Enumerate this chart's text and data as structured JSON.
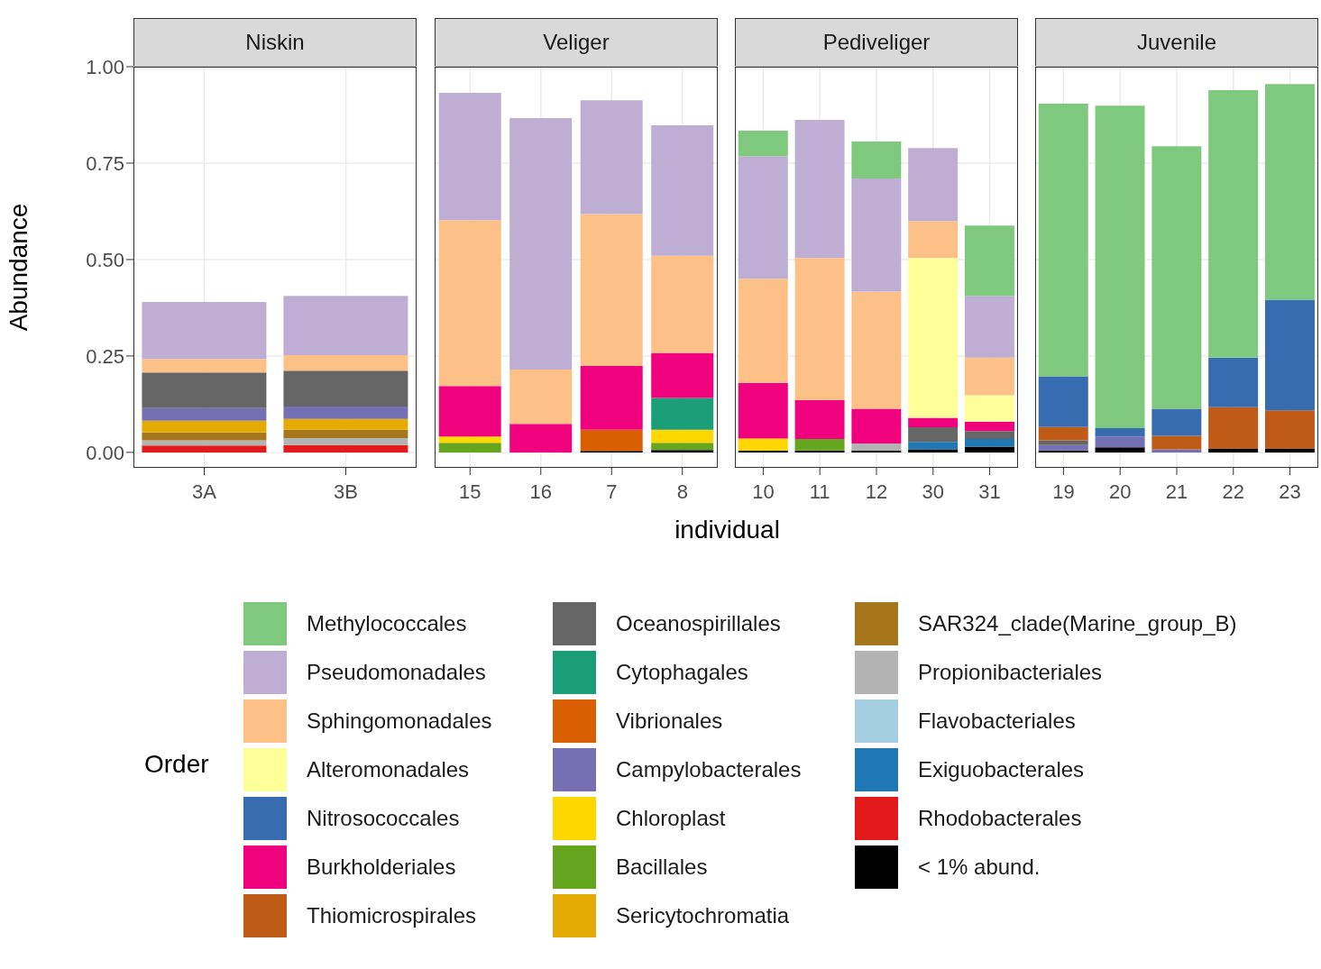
{
  "chart_data": [
    {
      "type": "bar",
      "title": "Niskin",
      "ylabel": "Abundance",
      "legend_title": "Order",
      "legend": "bottom",
      "stacked": true,
      "grid": true,
      "categories": [
        "3A",
        "3B"
      ],
      "ylim": [
        -0.04,
        1.0
      ],
      "yticks": [
        {
          "value": 0,
          "label": "0.00"
        },
        {
          "value": 0.25,
          "label": "0.25"
        },
        {
          "value": 0.5,
          "label": "0.50"
        },
        {
          "value": 0.75,
          "label": "0.75"
        },
        {
          "value": 1,
          "label": "1.00"
        }
      ],
      "series": [
        {
          "name": "< 1% abund.",
          "color": "#000000",
          "values": [
            0,
            0
          ]
        },
        {
          "name": "Rhodobacterales",
          "color": "#e31a1c",
          "values": [
            0.018,
            0.019
          ]
        },
        {
          "name": "Exiguobacterales",
          "color": "#1f78b4",
          "values": [
            0,
            0
          ]
        },
        {
          "name": "Flavobacteriales",
          "color": "#a6cee3",
          "values": [
            0,
            0
          ]
        },
        {
          "name": "Propionibacteriales",
          "color": "#b3b3b3",
          "values": [
            0.013,
            0.018
          ]
        },
        {
          "name": "SAR324_clade(Marine_group_B)",
          "color": "#a6761d",
          "values": [
            0.021,
            0.022
          ]
        },
        {
          "name": "Sericytochromatia",
          "color": "#e6ab02",
          "values": [
            0.03,
            0.028
          ]
        },
        {
          "name": "Bacillales",
          "color": "#66a61e",
          "values": [
            0,
            0
          ]
        },
        {
          "name": "Chloroplast",
          "color": "#ffd700",
          "values": [
            0,
            0
          ]
        },
        {
          "name": "Campylobacterales",
          "color": "#7570b3",
          "values": [
            0.033,
            0.032
          ]
        },
        {
          "name": "Vibrionales",
          "color": "#d95f02",
          "values": [
            0,
            0
          ]
        },
        {
          "name": "Cytophagales",
          "color": "#1b9e77",
          "values": [
            0,
            0
          ]
        },
        {
          "name": "Oceanospirillales",
          "color": "#666666",
          "values": [
            0.092,
            0.093
          ]
        },
        {
          "name": "Thiomicrospirales",
          "color": "#bf5b17",
          "values": [
            0,
            0
          ]
        },
        {
          "name": "Burkholderiales",
          "color": "#f0027f",
          "values": [
            0,
            0
          ]
        },
        {
          "name": "Nitrosococcales",
          "color": "#386cb0",
          "values": [
            0,
            0
          ]
        },
        {
          "name": "Alteromonadales",
          "color": "#ffff99",
          "values": [
            0,
            0
          ]
        },
        {
          "name": "Sphingomonadales",
          "color": "#fdc086",
          "values": [
            0.035,
            0.04
          ]
        },
        {
          "name": "Pseudomonadales",
          "color": "#beaed4",
          "values": [
            0.148,
            0.154
          ]
        },
        {
          "name": "Methylococcales",
          "color": "#7fc97f",
          "values": [
            0,
            0
          ]
        }
      ]
    },
    {
      "type": "bar",
      "title": "Veliger",
      "xlabel": "individual",
      "stacked": true,
      "grid": true,
      "tick_labels": "x",
      "categories": [
        "15",
        "16",
        "7",
        "8"
      ],
      "ylim": [
        -0.04,
        1.0
      ],
      "yticks": [
        {
          "value": 0,
          "label": null
        },
        {
          "value": 0.25,
          "label": null
        },
        {
          "value": 0.5,
          "label": null
        },
        {
          "value": 0.75,
          "label": null
        },
        {
          "value": 1,
          "label": null
        }
      ],
      "series": [
        {
          "color": "#000000",
          "values": [
            0,
            0,
            0.004,
            0.006
          ]
        },
        {
          "color": "#e31a1c",
          "values": [
            0,
            0,
            0,
            0
          ]
        },
        {
          "color": "#1f78b4",
          "values": [
            0,
            0,
            0,
            0
          ]
        },
        {
          "color": "#a6cee3",
          "values": [
            0,
            0,
            0,
            0
          ]
        },
        {
          "color": "#b3b3b3",
          "values": [
            0,
            0,
            0,
            0
          ]
        },
        {
          "color": "#a6761d",
          "values": [
            0,
            0,
            0,
            0
          ]
        },
        {
          "color": "#e6ab02",
          "values": [
            0,
            0,
            0,
            0
          ]
        },
        {
          "color": "#66a61e",
          "values": [
            0.025,
            0,
            0,
            0.019
          ]
        },
        {
          "color": "#ffd700",
          "values": [
            0.016,
            0,
            0,
            0.034
          ]
        },
        {
          "color": "#7570b3",
          "values": [
            0,
            0,
            0,
            0
          ]
        },
        {
          "color": "#d95f02",
          "values": [
            0,
            0,
            0.055,
            0
          ]
        },
        {
          "color": "#1b9e77",
          "values": [
            0,
            0,
            0,
            0.082
          ]
        },
        {
          "color": "#666666",
          "values": [
            0,
            0,
            0,
            0
          ]
        },
        {
          "color": "#bf5b17",
          "values": [
            0,
            0,
            0,
            0
          ]
        },
        {
          "color": "#f0027f",
          "values": [
            0.131,
            0.074,
            0.165,
            0.117
          ]
        },
        {
          "color": "#386cb0",
          "values": [
            0,
            0,
            0,
            0
          ]
        },
        {
          "color": "#ffff99",
          "values": [
            0,
            0,
            0,
            0
          ]
        },
        {
          "color": "#fdc086",
          "values": [
            0.43,
            0.141,
            0.394,
            0.252
          ]
        },
        {
          "color": "#beaed4",
          "values": [
            0.33,
            0.652,
            0.295,
            0.338
          ]
        },
        {
          "color": "#7fc97f",
          "values": [
            0,
            0,
            0,
            0
          ]
        }
      ]
    },
    {
      "type": "bar",
      "title": "Pediveliger",
      "stacked": true,
      "grid": true,
      "tick_labels": "x",
      "categories": [
        "10",
        "11",
        "12",
        "30",
        "31"
      ],
      "ylim": [
        -0.04,
        1.0
      ],
      "yticks": [
        {
          "value": 0,
          "label": null
        },
        {
          "value": 0.25,
          "label": null
        },
        {
          "value": 0.5,
          "label": null
        },
        {
          "value": 0.75,
          "label": null
        },
        {
          "value": 1,
          "label": null
        }
      ],
      "series": [
        {
          "color": "#000000",
          "values": [
            0.005,
            0.005,
            0.005,
            0.008,
            0.015
          ]
        },
        {
          "color": "#e31a1c",
          "values": [
            0,
            0,
            0,
            0,
            0
          ]
        },
        {
          "color": "#1f78b4",
          "values": [
            0,
            0,
            0,
            0.019,
            0.02
          ]
        },
        {
          "color": "#a6cee3",
          "values": [
            0,
            0,
            0,
            0,
            0
          ]
        },
        {
          "color": "#b3b3b3",
          "values": [
            0,
            0,
            0.018,
            0,
            0
          ]
        },
        {
          "color": "#a6761d",
          "values": [
            0,
            0,
            0,
            0,
            0
          ]
        },
        {
          "color": "#e6ab02",
          "values": [
            0,
            0,
            0,
            0,
            0
          ]
        },
        {
          "color": "#66a61e",
          "values": [
            0,
            0.03,
            0,
            0,
            0
          ]
        },
        {
          "color": "#ffd700",
          "values": [
            0.031,
            0,
            0,
            0,
            0
          ]
        },
        {
          "color": "#7570b3",
          "values": [
            0,
            0,
            0,
            0,
            0
          ]
        },
        {
          "color": "#d95f02",
          "values": [
            0,
            0,
            0,
            0,
            0
          ]
        },
        {
          "color": "#1b9e77",
          "values": [
            0,
            0,
            0,
            0,
            0
          ]
        },
        {
          "color": "#666666",
          "values": [
            0,
            0,
            0,
            0.038,
            0.02
          ]
        },
        {
          "color": "#bf5b17",
          "values": [
            0,
            0,
            0,
            0,
            0
          ]
        },
        {
          "color": "#f0027f",
          "values": [
            0.144,
            0.1,
            0.09,
            0.025,
            0.025
          ]
        },
        {
          "color": "#386cb0",
          "values": [
            0,
            0,
            0,
            0,
            0
          ]
        },
        {
          "color": "#ffff99",
          "values": [
            0,
            0,
            0,
            0.414,
            0.068
          ]
        },
        {
          "color": "#fdc086",
          "values": [
            0.27,
            0.369,
            0.304,
            0.096,
            0.098
          ]
        },
        {
          "color": "#beaed4",
          "values": [
            0.318,
            0.358,
            0.293,
            0.189,
            0.159
          ]
        },
        {
          "color": "#7fc97f",
          "values": [
            0.066,
            0,
            0.096,
            0,
            0.183
          ]
        }
      ]
    },
    {
      "type": "bar",
      "title": "Juvenile",
      "stacked": true,
      "grid": true,
      "tick_labels": "x",
      "categories": [
        "19",
        "20",
        "21",
        "22",
        "23"
      ],
      "ylim": [
        -0.04,
        1.0
      ],
      "yticks": [
        {
          "value": 0,
          "label": null
        },
        {
          "value": 0.25,
          "label": null
        },
        {
          "value": 0.5,
          "label": null
        },
        {
          "value": 0.75,
          "label": null
        },
        {
          "value": 1,
          "label": null
        }
      ],
      "series": [
        {
          "color": "#000000",
          "values": [
            0.005,
            0.013,
            0,
            0.01,
            0.01
          ]
        },
        {
          "color": "#e31a1c",
          "values": [
            0,
            0,
            0,
            0,
            0
          ]
        },
        {
          "color": "#1f78b4",
          "values": [
            0,
            0,
            0,
            0,
            0
          ]
        },
        {
          "color": "#a6cee3",
          "values": [
            0,
            0,
            0,
            0,
            0
          ]
        },
        {
          "color": "#b3b3b3",
          "values": [
            0,
            0,
            0,
            0,
            0
          ]
        },
        {
          "color": "#a6761d",
          "values": [
            0,
            0,
            0,
            0,
            0
          ]
        },
        {
          "color": "#e6ab02",
          "values": [
            0,
            0,
            0,
            0,
            0
          ]
        },
        {
          "color": "#66a61e",
          "values": [
            0,
            0,
            0,
            0,
            0
          ]
        },
        {
          "color": "#ffd700",
          "values": [
            0,
            0,
            0,
            0,
            0
          ]
        },
        {
          "color": "#7570b3",
          "values": [
            0.014,
            0.028,
            0.008,
            0,
            0
          ]
        },
        {
          "color": "#d95f02",
          "values": [
            0,
            0,
            0,
            0,
            0
          ]
        },
        {
          "color": "#1b9e77",
          "values": [
            0,
            0,
            0,
            0,
            0
          ]
        },
        {
          "color": "#666666",
          "values": [
            0.012,
            0,
            0,
            0,
            0
          ]
        },
        {
          "color": "#bf5b17",
          "values": [
            0.035,
            0,
            0.035,
            0.107,
            0.099
          ]
        },
        {
          "color": "#f0027f",
          "values": [
            0,
            0,
            0,
            0,
            0
          ]
        },
        {
          "color": "#386cb0",
          "values": [
            0.131,
            0.022,
            0.07,
            0.129,
            0.287
          ]
        },
        {
          "color": "#ffff99",
          "values": [
            0,
            0,
            0,
            0,
            0
          ]
        },
        {
          "color": "#fdc086",
          "values": [
            0,
            0,
            0,
            0,
            0
          ]
        },
        {
          "color": "#beaed4",
          "values": [
            0,
            0,
            0,
            0,
            0
          ]
        },
        {
          "color": "#7fc97f",
          "values": [
            0.707,
            0.836,
            0.681,
            0.693,
            0.559
          ]
        }
      ]
    }
  ]
}
